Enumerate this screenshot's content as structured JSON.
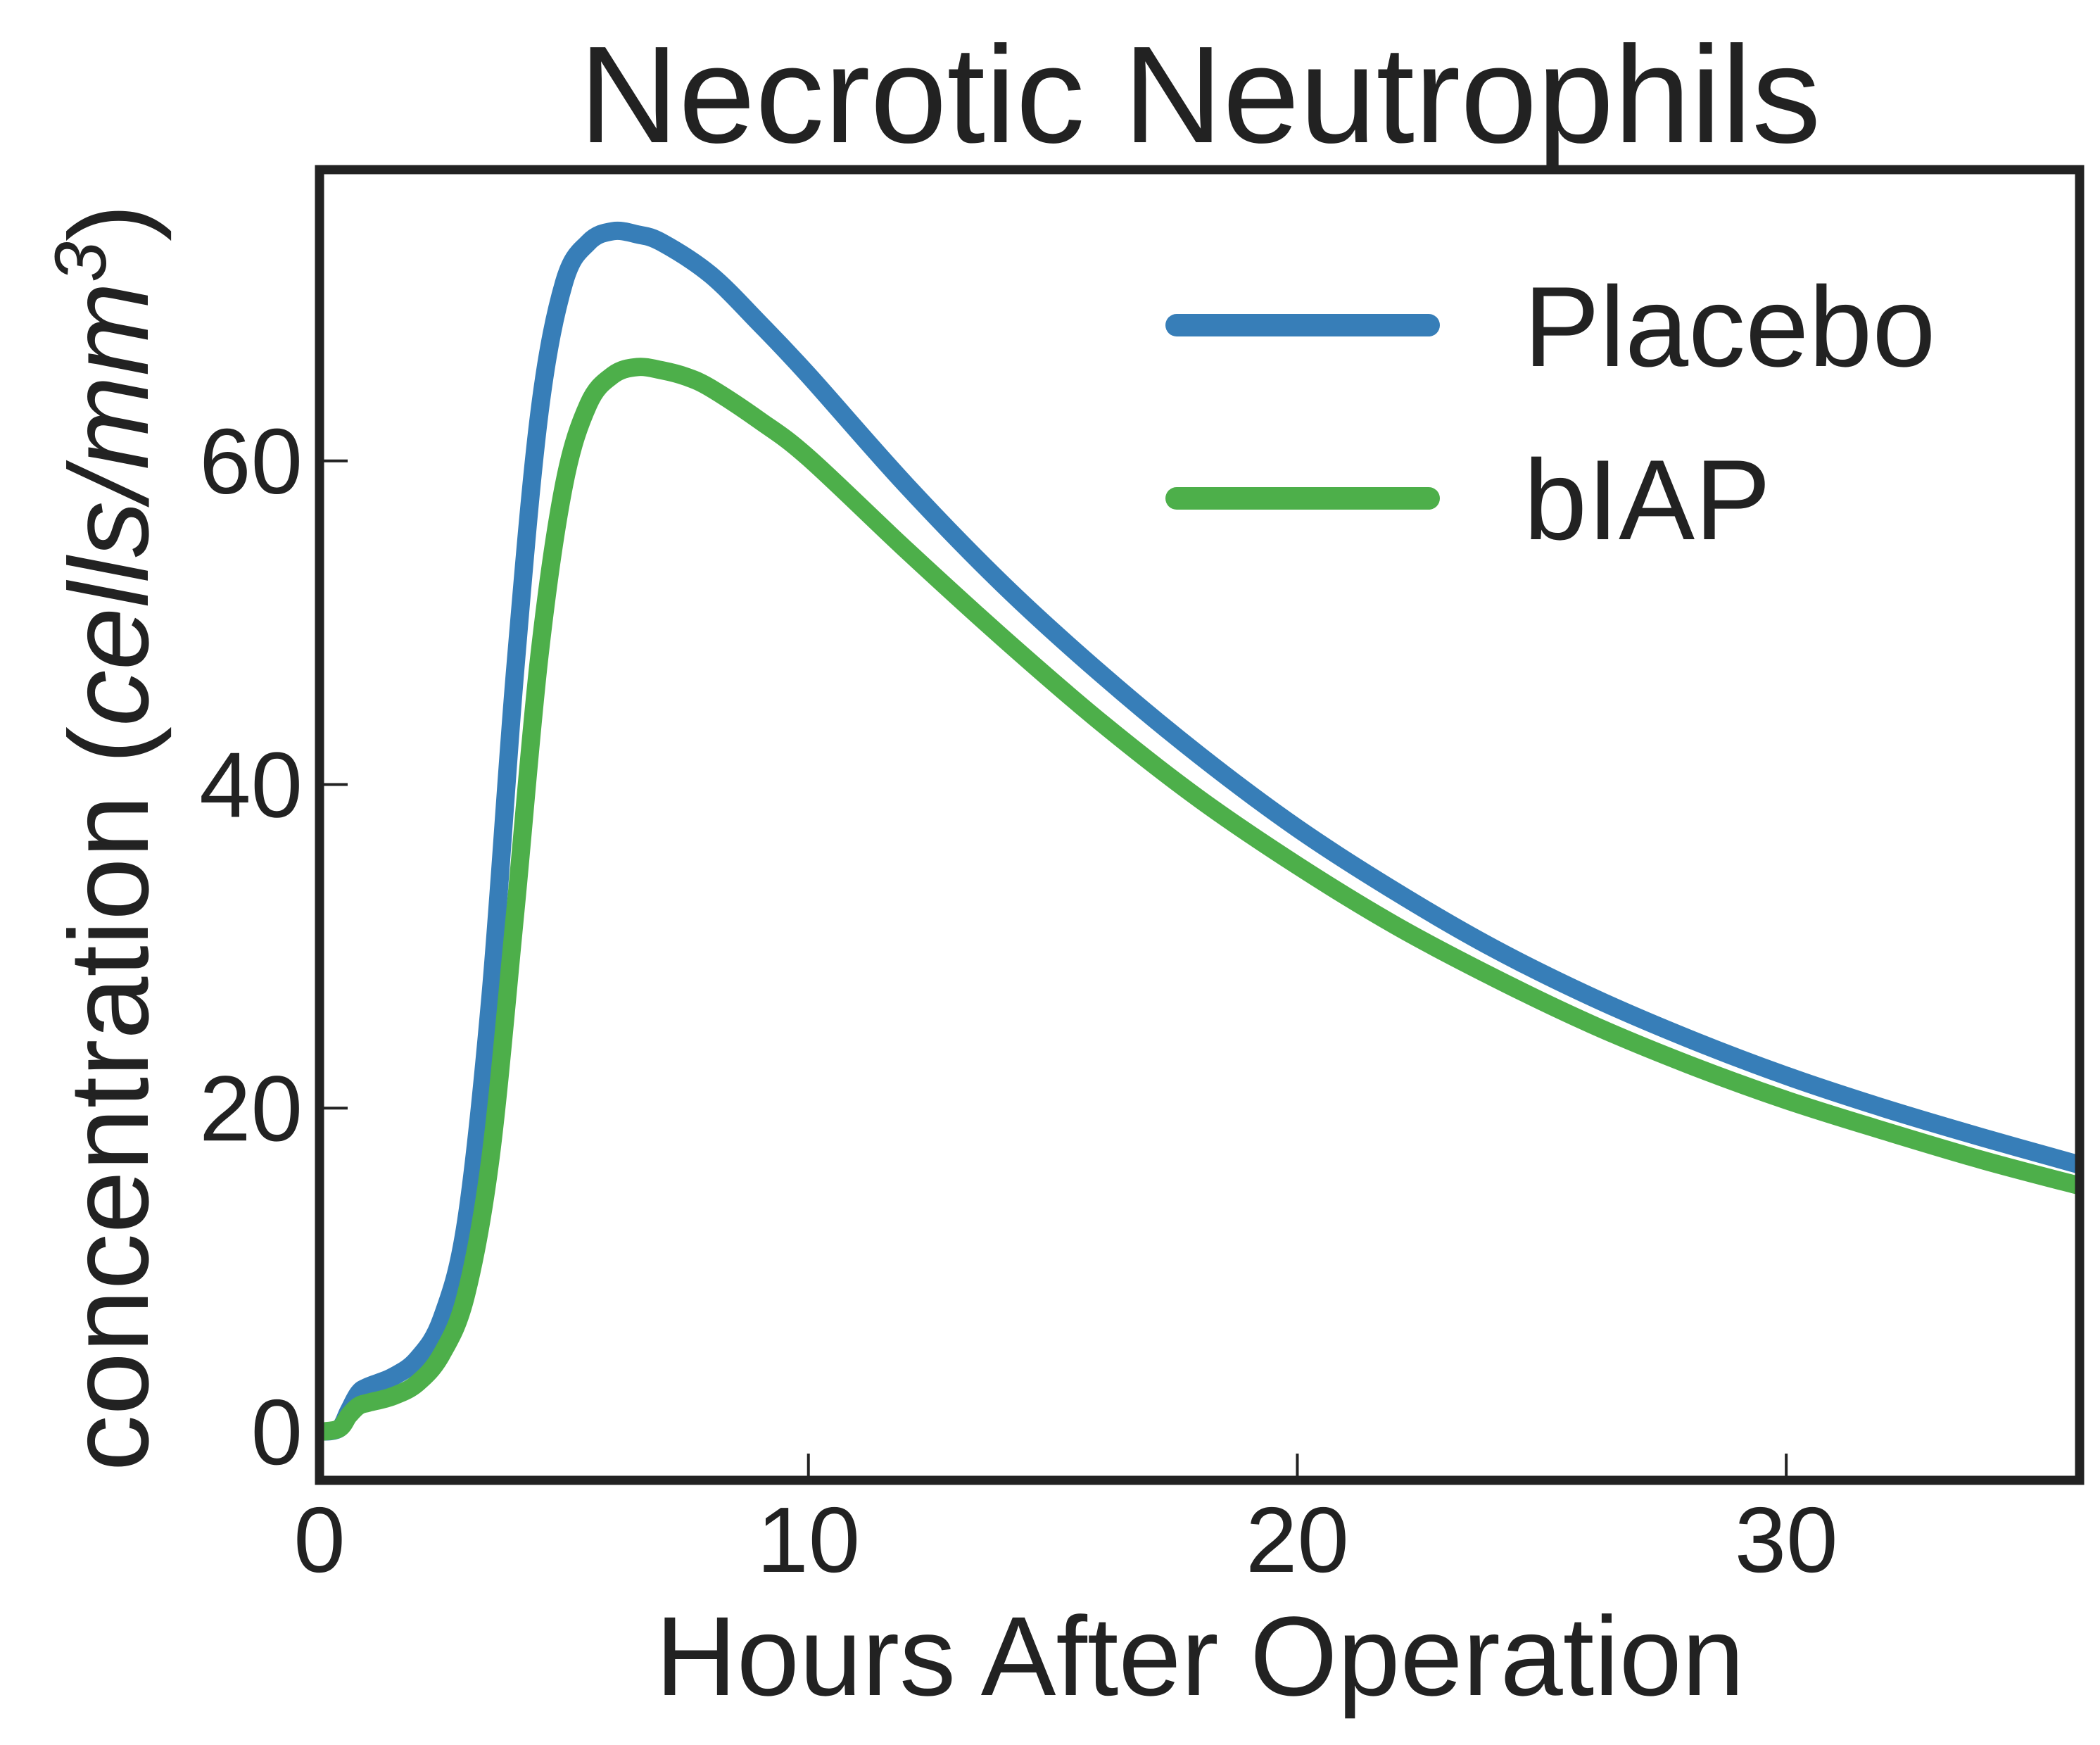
{
  "chart_data": {
    "type": "line",
    "title": "Necrotic Neutrophils",
    "xlabel": "Hours After Operation",
    "ylabel": {
      "prefix": "concentration (",
      "unit_italic": "cells/mm",
      "superscript": "3",
      "suffix": ")"
    },
    "xlim": [
      0,
      36
    ],
    "ylim": [
      -3,
      78
    ],
    "xticks": [
      0,
      10,
      20,
      30
    ],
    "xtick_labels": [
      "0",
      "10",
      "20",
      "30"
    ],
    "yticks": [
      0,
      20,
      40,
      60
    ],
    "ytick_labels": [
      "0",
      "20",
      "40",
      "60"
    ],
    "grid": false,
    "legend_position": "top-right",
    "series": [
      {
        "name": "Placebo",
        "color": "#377eb8",
        "x": [
          0,
          0.4,
          0.6,
          0.8,
          1.0,
          1.5,
          2.0,
          2.5,
          3.0,
          3.5,
          4.0,
          4.5,
          5.0,
          5.5,
          6.0,
          6.5,
          7.0,
          8.0,
          9.0,
          10.0,
          12.0,
          14.0,
          16.0,
          18.0,
          20.0,
          22.0,
          24.0,
          26.0,
          28.0,
          30.0,
          32.0,
          34.0,
          36.0
        ],
        "values": [
          0,
          0.2,
          1.3,
          2.4,
          2.8,
          3.4,
          4.5,
          7.0,
          13.0,
          27.0,
          47.0,
          63.0,
          71.0,
          73.5,
          74.2,
          74.0,
          73.5,
          71.5,
          68.5,
          65.3,
          58.5,
          52.3,
          46.8,
          41.8,
          37.3,
          33.4,
          29.9,
          26.9,
          24.3,
          22.0,
          20.0,
          18.2,
          16.5
        ]
      },
      {
        "name": "bIAP",
        "color": "#4daf4a",
        "x": [
          0,
          0.4,
          0.6,
          0.8,
          1.0,
          1.5,
          2.0,
          2.5,
          3.0,
          3.5,
          4.0,
          4.5,
          5.0,
          5.5,
          6.0,
          6.5,
          7.0,
          7.5,
          8.0,
          9.0,
          10.0,
          12.0,
          14.0,
          16.0,
          18.0,
          20.0,
          22.0,
          24.0,
          26.0,
          28.0,
          30.0,
          32.0,
          34.0,
          36.0
        ],
        "values": [
          0,
          0.2,
          1.0,
          1.6,
          1.8,
          2.2,
          3.0,
          4.8,
          8.5,
          17.0,
          32.0,
          48.0,
          58.5,
          63.5,
          65.3,
          65.8,
          65.6,
          65.2,
          64.5,
          62.5,
          60.2,
          54.5,
          49.0,
          43.8,
          39.1,
          35.0,
          31.3,
          28.1,
          25.2,
          22.7,
          20.5,
          18.6,
          16.8,
          15.2
        ]
      }
    ]
  }
}
